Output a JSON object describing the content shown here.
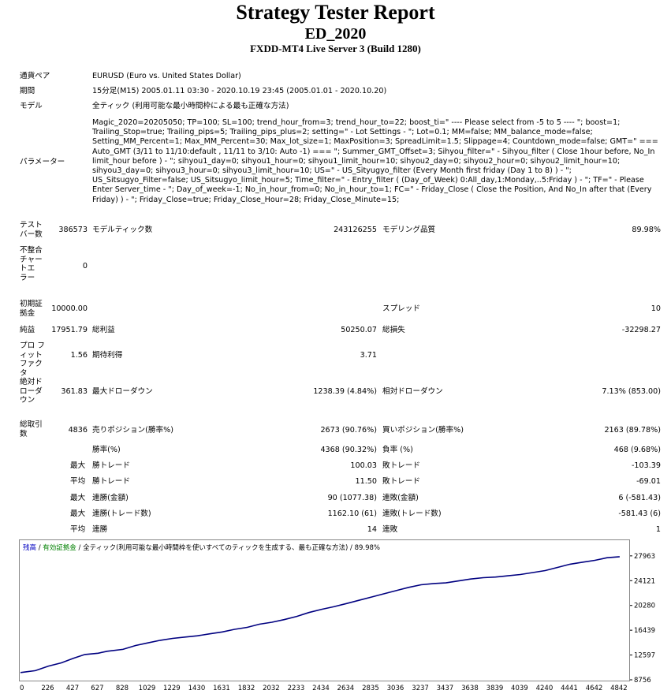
{
  "header": {
    "title": "Strategy Tester Report",
    "ea_name": "ED_2020",
    "server": "FXDD-MT4 Live Server 3 (Build 1280)"
  },
  "info": {
    "symbol_label": "通貨ペア",
    "symbol_value": "EURUSD (Euro vs. United States Dollar)",
    "period_label": "期間",
    "period_value": "15分足(M15) 2005.01.11 03:30 - 2020.10.19 23:45 (2005.01.01 - 2020.10.20)",
    "model_label": "モデル",
    "model_value": "全ティック (利用可能な最小時間枠による最も正確な方法)",
    "params_label": "パラメーター",
    "params_value": "Magic_2020=20205050; TP=100; SL=100; trend_hour_from=3; trend_hour_to=22; boost_ti=\" ---- Please select from -5 to 5 ---- \"; boost=1; Trailing_Stop=true; Trailing_pips=5; Trailing_pips_plus=2; setting=\" - Lot Settings - \"; Lot=0.1; MM=false; MM_balance_mode=false; Setting_MM_Percent=1; Max_MM_Percent=30; Max_lot_size=1; MaxPosition=3; SpreadLimit=1.5; Slippage=4; Countdown_mode=false; GMT=\" === Auto_GMT (3/11 to 11/10:default , 11/11 to 3/10: Auto -1) === \"; Summer_GMT_Offset=3; Sihyou_filter=\" - Sihyou_filter ( Close 1hour before, No_In limit_hour before ) - \"; sihyou1_day=0; sihyou1_hour=0; sihyou1_limit_hour=10; sihyou2_day=0; sihyou2_hour=0; sihyou2_limit_hour=10; sihyou3_day=0; sihyou3_hour=0; sihyou3_limit_hour=10; US=\" - US_Sityugyo_filter (Every Month first friday (Day 1 to 8) ) - \"; US_Sitsugyo_Filter=false; US_Sitsugyo_limit_hour=5; Time_filter=\" - Entry_filter ( (Day_of_Week) 0:All_day,1:Monday,..5:Friday ) - \"; TF=\" - Please Enter Server_time - \"; Day_of_week=-1; No_in_hour_from=0; No_in_hour_to=1; FC=\" - Friday_Close ( Close the Position, And No_In after that (Every Friday) ) - \"; Friday_Close=true; Friday_Close_Hour=28; Friday_Close_Minute=15;"
  },
  "stats": {
    "bars_label": "テスト バー数",
    "bars_value": "386573",
    "ticks_label": "モデルティック数",
    "ticks_value": "243126255",
    "quality_label": "モデリング品質",
    "quality_value": "89.98%",
    "mismatch_label": "不整合 チャー トエ ラー",
    "mismatch_value": "0",
    "deposit_label": "初期証 拠金",
    "deposit_value": "10000.00",
    "spread_label": "スプレッド",
    "spread_value": "10",
    "net_label": "純益",
    "net_value": "17951.79",
    "gross_profit_label": "総利益",
    "gross_profit_value": "50250.07",
    "gross_loss_label": "総損失",
    "gross_loss_value": "-32298.27",
    "pf_label": "プロ フィット ファクタ",
    "pf_value": "1.56",
    "expected_label": "期待利得",
    "expected_value": "3.71",
    "abs_dd_label": "絶対ド ローダ ウン",
    "abs_dd_value": "361.83",
    "max_dd_label": "最大ドローダウン",
    "max_dd_value": "1238.39 (4.84%)",
    "rel_dd_label": "相対ドローダウン",
    "rel_dd_value": "7.13% (853.00)",
    "trades_label": "総取引 数",
    "trades_value": "4836",
    "short_label": "売りポジション(勝率%)",
    "short_value": "2673 (90.76%)",
    "long_label": "買いポジション(勝率%)",
    "long_value": "2163 (89.78%)",
    "win_label": "勝率(%)",
    "win_value": "4368 (90.32%)",
    "loss_label": "負率 (%)",
    "loss_value": "468 (9.68%)",
    "max_word": "最大",
    "avg_word": "平均",
    "largest_win_label": "勝トレード",
    "largest_win_value": "100.03",
    "largest_loss_label": "敗トレード",
    "largest_loss_value": "-103.39",
    "avg_win_label": "勝トレード",
    "avg_win_value": "11.50",
    "avg_loss_label": "敗トレード",
    "avg_loss_value": "-69.01",
    "cons_wins_money_label": "連勝(金額)",
    "cons_wins_money_value": "90 (1077.38)",
    "cons_loss_money_label": "連敗(金額)",
    "cons_loss_money_value": "6 (-581.43)",
    "cons_profit_label": "連勝(トレード数)",
    "cons_profit_value": "1162.10 (61)",
    "cons_lossamt_label": "連敗(トレード数)",
    "cons_lossamt_value": "-581.43 (6)",
    "avg_cons_wins_label": "連勝",
    "avg_cons_wins_value": "14",
    "avg_cons_loss_label": "連敗",
    "avg_cons_loss_value": "1"
  },
  "chart_legend": {
    "balance": "残高",
    "equity": "有効証拠金",
    "model": "全ティック(利用可能な最小時間枠を使いすべてのティックを生成する、最も正確な方法)",
    "quality": "89.98%"
  },
  "colors": {
    "balance_line": "#000080",
    "equity_legend": "#008000",
    "balance_legend": "#0000c0"
  },
  "chart_data": {
    "type": "line",
    "xlabel": "",
    "ylabel": "",
    "x_ticks": [
      0,
      226,
      427,
      627,
      828,
      1029,
      1229,
      1430,
      1631,
      1832,
      2032,
      2233,
      2434,
      2634,
      2835,
      3036,
      3237,
      3437,
      3638,
      3839,
      4039,
      4240,
      4441,
      4642,
      4842
    ],
    "y_ticks": [
      8756,
      12597,
      16439,
      20280,
      24121,
      27963
    ],
    "xlim": [
      0,
      4900
    ],
    "ylim": [
      8756,
      28800
    ],
    "series": [
      {
        "x": [
          0,
          120,
          226,
          330,
          427,
          520,
          627,
          700,
          828,
          930,
          1029,
          1130,
          1229,
          1330,
          1430,
          1530,
          1631,
          1730,
          1832,
          1930,
          2032,
          2130,
          2233,
          2330,
          2434,
          2530,
          2634,
          2735,
          2835,
          2935,
          3036,
          3137,
          3237,
          3340,
          3437,
          3540,
          3638,
          3740,
          3839,
          3940,
          4039,
          4140,
          4240,
          4340,
          4441,
          4540,
          4642,
          4740,
          4842
        ],
        "y": [
          10000,
          10300,
          11000,
          11500,
          12200,
          12800,
          13000,
          13300,
          13600,
          14200,
          14600,
          15000,
          15300,
          15500,
          15700,
          16000,
          16300,
          16700,
          17000,
          17500,
          17800,
          18200,
          18700,
          19300,
          19800,
          20200,
          20700,
          21200,
          21700,
          22200,
          22700,
          23200,
          23600,
          23800,
          23900,
          24200,
          24500,
          24700,
          24800,
          25000,
          25200,
          25500,
          25800,
          26300,
          26800,
          27100,
          27400,
          27800,
          27960
        ]
      }
    ]
  }
}
